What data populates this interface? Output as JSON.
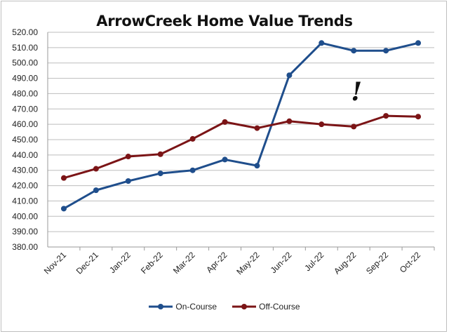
{
  "chart_data": {
    "type": "line",
    "title": "ArrowCreek Home Value Trends",
    "xlabel": "",
    "ylabel": "",
    "categories": [
      "Nov-21",
      "Dec-21",
      "Jan-22",
      "Feb-22",
      "Mar-22",
      "Apr-22",
      "May-22",
      "Jun-22",
      "Jul-22",
      "Aug-22",
      "Sep-22",
      "Oct-22"
    ],
    "ylim": [
      380,
      520
    ],
    "yticks": [
      "380.00",
      "390.00",
      "400.00",
      "410.00",
      "420.00",
      "430.00",
      "440.00",
      "450.00",
      "460.00",
      "470.00",
      "480.00",
      "490.00",
      "500.00",
      "510.00",
      "520.00"
    ],
    "grid": true,
    "legend_position": "bottom",
    "series": [
      {
        "name": "On-Course",
        "color": "#1f4e8c",
        "values": [
          405,
          417,
          423,
          428,
          430,
          437,
          433,
          492,
          513,
          508,
          508,
          513
        ]
      },
      {
        "name": "Off-Course",
        "color": "#7b1416",
        "values": [
          425,
          431,
          439,
          440.5,
          450.5,
          461.5,
          457.5,
          462,
          460,
          458.5,
          465.5,
          465
        ]
      }
    ],
    "annotations": [
      {
        "text": "!",
        "category": "Aug-22",
        "y": 483
      }
    ]
  }
}
